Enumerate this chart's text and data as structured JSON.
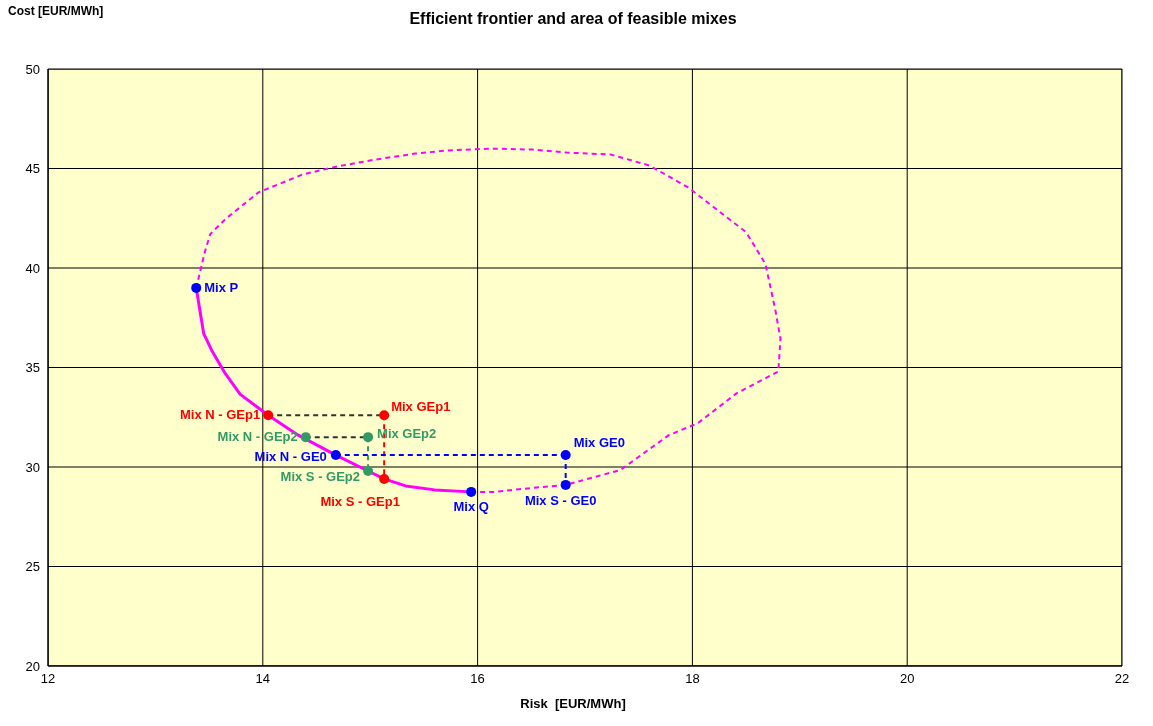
{
  "chart_data": {
    "type": "scatter",
    "title": "Efficient frontier and area of feasible mixes",
    "xlabel": "Risk  [EUR/MWh]",
    "ylabel": "Cost [EUR/MWh]",
    "xlim": [
      12,
      22
    ],
    "xticks": [
      12,
      14,
      16,
      18,
      20,
      22
    ],
    "ylim": [
      20,
      50
    ],
    "yticks": [
      20,
      25,
      30,
      35,
      40,
      45,
      50
    ],
    "grid": true,
    "legend": false,
    "marker": "circle",
    "series": [
      {
        "type": "line",
        "color": "#ff00ff",
        "line_style": "solid",
        "marker": "none",
        "x": [
          13.38,
          13.45,
          13.53,
          13.65,
          13.79,
          14.05,
          14.33,
          14.68,
          14.98,
          15.13,
          15.33,
          15.6,
          15.94
        ],
        "values": [
          39.0,
          36.7,
          35.8,
          34.7,
          33.65,
          32.6,
          31.6,
          30.6,
          29.8,
          29.4,
          29.05,
          28.85,
          28.75
        ]
      },
      {
        "type": "line",
        "color": "#ff00ff",
        "line_style": "dashed",
        "marker": "none",
        "x": [
          15.94,
          16.15,
          16.51,
          16.82,
          17.33,
          17.78,
          18.05,
          18.41,
          18.8,
          18.82,
          18.77,
          18.68,
          18.5,
          18.32,
          17.96,
          17.6,
          17.24,
          16.83,
          16.51,
          16.12,
          15.7,
          15.42,
          15.05,
          14.69,
          14.37,
          13.96,
          13.65,
          13.51,
          13.46,
          13.38
        ],
        "values": [
          28.75,
          28.75,
          28.95,
          29.1,
          29.85,
          31.6,
          32.2,
          33.7,
          34.8,
          36.45,
          37.95,
          40.2,
          41.8,
          42.55,
          44.05,
          45.15,
          45.7,
          45.8,
          45.95,
          46.0,
          45.9,
          45.75,
          45.45,
          45.1,
          44.7,
          43.8,
          42.45,
          41.7,
          40.8,
          39.0
        ]
      },
      {
        "type": "line",
        "color": "#333333",
        "line_style": "dashed",
        "marker": "none",
        "x": [
          14.05,
          15.13
        ],
        "values": [
          32.6,
          32.6
        ]
      },
      {
        "type": "line",
        "color": "#ff0000",
        "line_style": "dashed",
        "marker": "none",
        "x": [
          15.13,
          15.13
        ],
        "values": [
          32.6,
          29.4
        ]
      },
      {
        "type": "line",
        "color": "#333333",
        "line_style": "dashed",
        "marker": "none",
        "x": [
          14.4,
          14.98
        ],
        "values": [
          31.5,
          31.5
        ]
      },
      {
        "type": "line",
        "color": "#339966",
        "line_style": "dashed",
        "marker": "none",
        "x": [
          14.98,
          14.98
        ],
        "values": [
          31.5,
          29.8
        ]
      },
      {
        "type": "line",
        "color": "#0000ff",
        "line_style": "dashed",
        "marker": "none",
        "x": [
          14.68,
          16.82
        ],
        "values": [
          30.6,
          30.6
        ]
      },
      {
        "type": "line",
        "color": "#0000ff",
        "line_style": "dashed",
        "marker": "none",
        "x": [
          16.82,
          16.82
        ],
        "values": [
          30.6,
          29.1
        ]
      },
      {
        "name": "Mix P",
        "color": "#0000ff",
        "x": [
          13.38
        ],
        "values": [
          39.0
        ]
      },
      {
        "name": "Mix N - GEp1",
        "color": "#ff0000",
        "x": [
          14.05
        ],
        "values": [
          32.6
        ]
      },
      {
        "name": "Mix GEp1",
        "color": "#ff0000",
        "x": [
          15.13
        ],
        "values": [
          32.6
        ]
      },
      {
        "name": "Mix N - GEp2",
        "color": "#339966",
        "x": [
          14.4
        ],
        "values": [
          31.5
        ]
      },
      {
        "name": "Mix GEp2",
        "color": "#339966",
        "x": [
          14.98
        ],
        "values": [
          31.5
        ]
      },
      {
        "name": "Mix N - GE0",
        "color": "#0000ff",
        "x": [
          14.68
        ],
        "values": [
          30.6
        ]
      },
      {
        "name": "Mix GE0",
        "color": "#0000ff",
        "x": [
          16.82
        ],
        "values": [
          30.6
        ]
      },
      {
        "name": "Mix S - GEp2",
        "color": "#339966",
        "x": [
          14.98
        ],
        "values": [
          29.8
        ]
      },
      {
        "name": "Mix S - GEp1",
        "color": "#ff0000",
        "x": [
          15.13
        ],
        "values": [
          29.4
        ]
      },
      {
        "name": "Mix Q",
        "color": "#0000ff",
        "x": [
          15.94
        ],
        "values": [
          28.75
        ]
      },
      {
        "name": "Mix S - GE0",
        "color": "#0000ff",
        "x": [
          16.82
        ],
        "values": [
          29.1
        ]
      }
    ]
  }
}
